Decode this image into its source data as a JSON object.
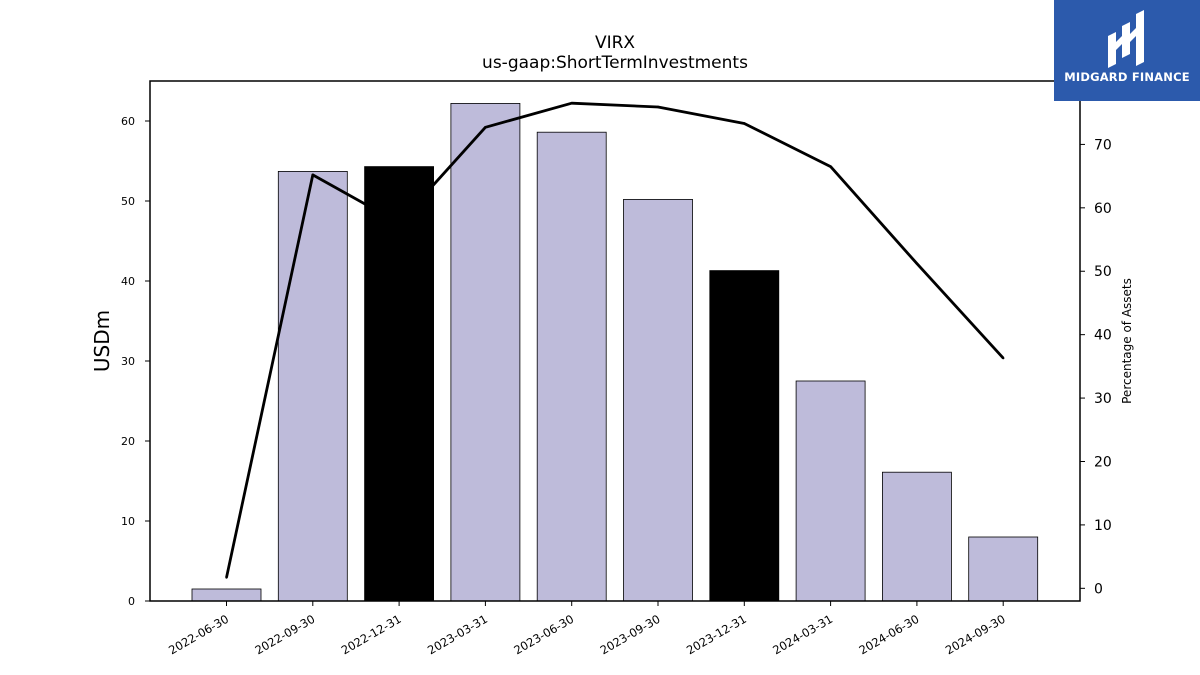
{
  "chart_data": {
    "type": "bar",
    "title": "VIRX",
    "subtitle": "us-gaap:ShortTermInvestments",
    "ylabel": "USDm",
    "y2label": "Percentage of Assets",
    "categories": [
      "2022-06-30",
      "2022-09-30",
      "2022-12-31",
      "2023-03-31",
      "2023-06-30",
      "2023-09-30",
      "2023-12-31",
      "2024-03-31",
      "2024-06-30",
      "2024-09-30"
    ],
    "series": [
      {
        "kind": "bar",
        "axis": "left",
        "values": [
          1.5,
          53.7,
          54.3,
          62.2,
          58.6,
          50.2,
          41.3,
          27.5,
          16.1,
          8.0
        ],
        "colors": [
          "#bebbda",
          "#bebbda",
          "#000000",
          "#bebbda",
          "#bebbda",
          "#bebbda",
          "#000000",
          "#bebbda",
          "#bebbda",
          "#bebbda"
        ]
      },
      {
        "kind": "line",
        "axis": "right",
        "values": [
          1.7,
          65.2,
          57.6,
          72.7,
          76.5,
          75.9,
          73.3,
          66.5,
          51.2,
          36.3
        ],
        "color": "#000000"
      }
    ],
    "ylim": [
      0,
      65
    ],
    "y2lim": [
      -2,
      80
    ],
    "yticks": [
      0,
      10,
      20,
      30,
      40,
      50,
      60
    ],
    "y2ticks": [
      0,
      10,
      20,
      30,
      40,
      50,
      60,
      70
    ]
  },
  "logo": {
    "text": "MIDGARD FINANCE",
    "bg": "#2c5aac"
  }
}
